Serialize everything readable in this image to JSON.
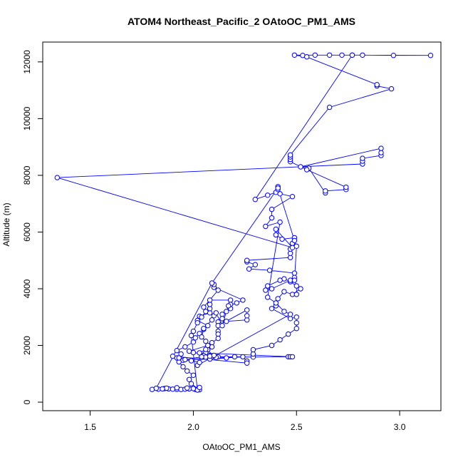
{
  "chart_data": {
    "type": "scatter",
    "title": "ATOM4 Northeast_Pacific_2 OAtoOC_PM1_AMS",
    "xlabel": "OAtoOC_PM1_AMS",
    "ylabel": "Altitude (m)",
    "xlim": [
      1.27,
      3.2
    ],
    "ylim": [
      -300,
      12700
    ],
    "x_ticks": [
      "1.5",
      "2.0",
      "2.5",
      "3.0"
    ],
    "y_ticks": [
      "0",
      "2000",
      "4000",
      "6000",
      "8000",
      "10000",
      "12000"
    ],
    "x_tick_values": [
      1.5,
      2.0,
      2.5,
      3.0
    ],
    "y_tick_values": [
      0,
      2000,
      4000,
      6000,
      8000,
      10000,
      12000
    ],
    "colors": {
      "series": "#0000ff",
      "axis": "#000000"
    },
    "grid": false,
    "series": [
      {
        "marker": "open-circle",
        "line": true,
        "points": [
          [
            1.8,
            450
          ],
          [
            1.83,
            460
          ],
          [
            1.86,
            480
          ],
          [
            1.88,
            470
          ],
          [
            1.9,
            460
          ],
          [
            1.92,
            455
          ],
          [
            1.94,
            450
          ],
          [
            1.96,
            460
          ],
          [
            1.98,
            470
          ],
          [
            2.01,
            450
          ],
          [
            2.03,
            440
          ],
          [
            1.99,
            650
          ],
          [
            1.98,
            800
          ],
          [
            2.0,
            950
          ],
          [
            1.97,
            1100
          ],
          [
            1.95,
            1250
          ],
          [
            1.93,
            1420
          ],
          [
            1.92,
            1560
          ],
          [
            1.94,
            1700
          ],
          [
            1.92,
            1820
          ],
          [
            1.96,
            1950
          ],
          [
            2.0,
            2120
          ],
          [
            2.01,
            2270
          ],
          [
            2.03,
            2420
          ],
          [
            2.05,
            2570
          ],
          [
            2.07,
            2700
          ],
          [
            2.02,
            2880
          ],
          [
            2.03,
            3030
          ],
          [
            2.08,
            3150
          ],
          [
            2.08,
            3300
          ],
          [
            2.08,
            3450
          ],
          [
            2.08,
            3600
          ],
          [
            2.18,
            3600
          ],
          [
            2.18,
            3450
          ],
          [
            2.18,
            3300
          ],
          [
            2.14,
            3100
          ],
          [
            2.14,
            2950
          ],
          [
            2.12,
            2830
          ],
          [
            2.16,
            2850
          ],
          [
            2.26,
            2900
          ],
          [
            2.26,
            3050
          ],
          [
            2.26,
            3250
          ],
          [
            2.12,
            2700
          ],
          [
            2.12,
            2500
          ],
          [
            2.12,
            2400
          ],
          [
            2.12,
            2250
          ],
          [
            2.09,
            2100
          ],
          [
            2.09,
            1950
          ],
          [
            2.07,
            1850
          ],
          [
            2.06,
            1750
          ],
          [
            2.05,
            1640
          ],
          [
            2.04,
            1590
          ],
          [
            2.06,
            1590
          ],
          [
            2.09,
            1600
          ],
          [
            2.12,
            1600
          ],
          [
            2.2,
            1600
          ],
          [
            2.29,
            1590
          ],
          [
            2.29,
            1700
          ],
          [
            2.29,
            1850
          ],
          [
            2.38,
            2000
          ],
          [
            2.42,
            2200
          ],
          [
            2.46,
            2400
          ],
          [
            2.5,
            2600
          ],
          [
            2.5,
            2800
          ],
          [
            2.5,
            3000
          ],
          [
            2.47,
            2950
          ],
          [
            2.38,
            3300
          ],
          [
            2.4,
            3400
          ],
          [
            2.41,
            3650
          ],
          [
            2.44,
            3900
          ],
          [
            2.48,
            3800
          ],
          [
            2.52,
            4000
          ],
          [
            2.47,
            4250
          ],
          [
            2.44,
            4350
          ],
          [
            2.42,
            4300
          ],
          [
            2.36,
            4100
          ],
          [
            2.35,
            3950
          ],
          [
            2.38,
            4000
          ],
          [
            2.47,
            4300
          ],
          [
            2.49,
            4400
          ],
          [
            2.49,
            4550
          ],
          [
            2.37,
            4650
          ],
          [
            2.27,
            4700
          ],
          [
            2.3,
            4850
          ],
          [
            2.26,
            4950
          ],
          [
            2.26,
            5000
          ],
          [
            2.47,
            5100
          ],
          [
            2.47,
            5250
          ],
          [
            2.47,
            5400
          ],
          [
            2.48,
            5600
          ],
          [
            2.49,
            5800
          ],
          [
            2.43,
            5750
          ],
          [
            2.4,
            5900
          ],
          [
            2.4,
            6100
          ],
          [
            2.48,
            5450
          ],
          [
            1.34,
            7920
          ],
          [
            2.82,
            8400
          ],
          [
            2.82,
            8500
          ],
          [
            2.82,
            8600
          ],
          [
            2.91,
            8700
          ],
          [
            2.91,
            8800
          ],
          [
            2.91,
            8950
          ],
          [
            2.52,
            8300
          ],
          [
            2.56,
            8250
          ],
          [
            2.64,
            7380
          ],
          [
            2.64,
            7450
          ],
          [
            2.74,
            7500
          ],
          [
            2.74,
            7580
          ],
          [
            2.55,
            8200
          ],
          [
            2.47,
            8480
          ],
          [
            2.47,
            8560
          ],
          [
            2.47,
            8650
          ],
          [
            2.47,
            8720
          ],
          [
            2.66,
            10400
          ],
          [
            2.96,
            11050
          ],
          [
            2.89,
            11150
          ],
          [
            2.89,
            11200
          ],
          [
            2.53,
            12230
          ],
          [
            2.55,
            12180
          ],
          [
            2.49,
            12240
          ],
          [
            2.59,
            12240
          ],
          [
            2.66,
            12240
          ],
          [
            2.72,
            12240
          ],
          [
            2.77,
            12240
          ],
          [
            2.82,
            12240
          ],
          [
            2.97,
            12230
          ],
          [
            3.15,
            12230
          ],
          [
            2.77,
            12240
          ],
          [
            2.3,
            7150
          ],
          [
            2.36,
            7300
          ],
          [
            2.4,
            7400
          ],
          [
            2.41,
            7500
          ],
          [
            2.41,
            7600
          ],
          [
            2.42,
            7350
          ],
          [
            2.48,
            7250
          ],
          [
            2.38,
            6800
          ],
          [
            2.38,
            6500
          ],
          [
            2.35,
            6200
          ],
          [
            2.42,
            6350
          ],
          [
            2.36,
            3700
          ],
          [
            2.4,
            3500
          ],
          [
            2.44,
            3200
          ],
          [
            2.47,
            3100
          ],
          [
            2.02,
            1300
          ],
          [
            2.03,
            1400
          ],
          [
            1.99,
            1460
          ],
          [
            1.95,
            1480
          ],
          [
            2.08,
            1520
          ],
          [
            2.16,
            1560
          ],
          [
            2.24,
            1600
          ],
          [
            2.26,
            1450
          ],
          [
            2.26,
            1380
          ],
          [
            1.9,
            1620
          ],
          [
            1.93,
            1560
          ],
          [
            1.96,
            1500
          ],
          [
            2.04,
            1600
          ],
          [
            2.08,
            1620
          ],
          [
            2.11,
            1580
          ],
          [
            2.46,
            1600
          ],
          [
            2.47,
            1600
          ],
          [
            2.48,
            1600
          ],
          [
            2.03,
            1740
          ],
          [
            2.06,
            1860
          ],
          [
            2.1,
            1650
          ],
          [
            2.0,
            1750
          ],
          [
            1.98,
            1800
          ],
          [
            2.07,
            2000
          ],
          [
            2.06,
            2150
          ],
          [
            2.04,
            2300
          ],
          [
            2.05,
            2600
          ],
          [
            2.09,
            2900
          ],
          [
            2.1,
            3050
          ],
          [
            2.11,
            3150
          ],
          [
            2.14,
            2700
          ],
          [
            2.16,
            3200
          ],
          [
            2.17,
            3400
          ],
          [
            2.21,
            3500
          ],
          [
            2.24,
            3600
          ],
          [
            2.1,
            4050
          ],
          [
            2.1,
            4150
          ],
          [
            2.12,
            3950
          ],
          [
            2.05,
            3350
          ],
          [
            2.06,
            3200
          ],
          [
            2.04,
            3000
          ],
          [
            2.02,
            2800
          ],
          [
            2.0,
            2500
          ],
          [
            1.99,
            2350
          ],
          [
            2.02,
            430
          ],
          [
            2.03,
            520
          ],
          [
            2.0,
            480
          ],
          [
            1.97,
            500
          ],
          [
            1.92,
            510
          ],
          [
            1.87,
            495
          ],
          [
            1.85,
            470
          ],
          [
            1.82,
            490
          ],
          [
            2.09,
            4200
          ],
          [
            2.41,
            7550
          ],
          [
            2.49,
            5700
          ],
          [
            2.5,
            5500
          ],
          [
            2.49,
            4300
          ],
          [
            2.5,
            4100
          ],
          [
            2.5,
            3800
          ]
        ]
      }
    ]
  }
}
